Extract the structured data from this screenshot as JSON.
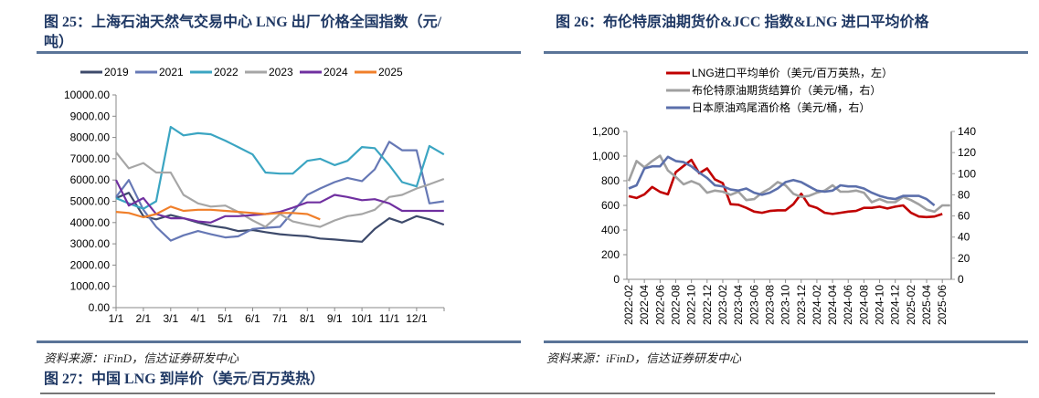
{
  "fig25": {
    "title": "图 25：上海石油天然气交易中心 LNG 出厂价格全国指数（元/吨）",
    "title_line1": "图 25：上海石油天然气交易中心 LNG 出厂价格全国指数（元/",
    "title_line2": "吨）",
    "source": "资料来源：iFinD，信达证券研发中心"
  },
  "fig26": {
    "title": "图 26：布伦特原油期货价&JCC 指数&LNG 进口平均价格",
    "source": "资料来源：iFinD，信达证券研发中心"
  },
  "fig27": {
    "title": "图 27：中国 LNG 到岸价（美元/百万英热）"
  },
  "chart_data": [
    {
      "type": "line",
      "ylim": [
        0,
        10000
      ],
      "y_ticks": [
        "0.00",
        "1000.00",
        "2000.00",
        "3000.00",
        "4000.00",
        "5000.00",
        "6000.00",
        "7000.00",
        "8000.00",
        "9000.00",
        "10000.00"
      ],
      "x_ticks": [
        "1/1",
        "2/1",
        "3/1",
        "4/1",
        "5/1",
        "6/1",
        "7/1",
        "8/1",
        "9/1",
        "10/1",
        "11/1",
        "12/1"
      ],
      "legend_placement": "top",
      "grid": false,
      "x": [
        "1/1",
        "1/15",
        "2/1",
        "2/15",
        "3/1",
        "3/15",
        "4/1",
        "4/15",
        "5/1",
        "5/15",
        "6/1",
        "6/15",
        "7/1",
        "7/15",
        "8/1",
        "8/15",
        "9/1",
        "9/15",
        "10/1",
        "10/15",
        "11/1",
        "11/15",
        "12/1",
        "12/15",
        "12/31"
      ],
      "series": [
        {
          "name": "2019",
          "color": "#3d4a6b",
          "values": [
            5150,
            5400,
            4300,
            4150,
            4350,
            4200,
            4000,
            3850,
            3750,
            3600,
            3650,
            3550,
            3450,
            3400,
            3350,
            3250,
            3200,
            3150,
            3100,
            3700,
            4200,
            4000,
            4300,
            4150,
            3900
          ]
        },
        {
          "name": "2021",
          "color": "#6678b5",
          "values": [
            5200,
            6000,
            4600,
            3800,
            3150,
            3400,
            3600,
            3450,
            3300,
            3350,
            3700,
            3750,
            3800,
            4500,
            5300,
            5600,
            5900,
            6100,
            5950,
            6500,
            7800,
            7400,
            7400,
            4900,
            5000
          ]
        },
        {
          "name": "2022",
          "color": "#3ba5c2",
          "values": [
            5150,
            4900,
            4650,
            5000,
            8500,
            8100,
            8200,
            8150,
            7850,
            7550,
            7200,
            6350,
            6300,
            6300,
            6900,
            7000,
            6700,
            6900,
            7550,
            7500,
            6700,
            5900,
            5700,
            7600,
            7200
          ]
        },
        {
          "name": "2023",
          "color": "#a6a6a6",
          "values": [
            7300,
            6550,
            6800,
            6350,
            6350,
            5300,
            4900,
            4750,
            4800,
            4500,
            4100,
            3800,
            4400,
            4050,
            3900,
            3800,
            4100,
            4300,
            4400,
            4600,
            5200,
            5300,
            5600,
            5800,
            6050
          ]
        },
        {
          "name": "2024",
          "color": "#7030a0",
          "values": [
            6000,
            4800,
            5150,
            4400,
            4200,
            4200,
            4050,
            4000,
            4300,
            4300,
            4350,
            4400,
            4500,
            4700,
            4950,
            4950,
            5300,
            5200,
            5050,
            5100,
            4900,
            4550,
            4550,
            4550,
            4550
          ]
        },
        {
          "name": "2025",
          "color": "#f07f2a",
          "values": [
            4500,
            4450,
            4250,
            4400,
            4750,
            4550,
            4600,
            4600,
            4550,
            4500,
            4450,
            4400,
            4450,
            4450,
            4400,
            4150,
            null,
            null,
            null,
            null,
            null,
            null,
            null,
            null,
            null
          ]
        }
      ]
    },
    {
      "type": "line",
      "ylim_left": [
        0,
        1200
      ],
      "ylim_right": [
        0,
        140
      ],
      "y_ticks_left": [
        "0",
        "200",
        "400",
        "600",
        "800",
        "1,000",
        "1,200"
      ],
      "y_ticks_right": [
        "0",
        "20",
        "40",
        "60",
        "80",
        "100",
        "120",
        "140"
      ],
      "x_ticks": [
        "2022-02",
        "2022-04",
        "2022-06",
        "2022-08",
        "2022-10",
        "2022-12",
        "2023-02",
        "2023-04",
        "2023-06",
        "2023-08",
        "2023-10",
        "2023-12",
        "2024-02",
        "2024-04",
        "2024-06",
        "2024-08",
        "2024-10",
        "2024-12",
        "2025-02",
        "2025-04",
        "2025-06"
      ],
      "legend_placement": "top",
      "grid": false,
      "x": [
        "2022-02",
        "2022-03",
        "2022-04",
        "2022-05",
        "2022-06",
        "2022-07",
        "2022-08",
        "2022-09",
        "2022-10",
        "2022-11",
        "2022-12",
        "2023-01",
        "2023-02",
        "2023-03",
        "2023-04",
        "2023-05",
        "2023-06",
        "2023-07",
        "2023-08",
        "2023-09",
        "2023-10",
        "2023-11",
        "2023-12",
        "2024-01",
        "2024-02",
        "2024-03",
        "2024-04",
        "2024-05",
        "2024-06",
        "2024-07",
        "2024-08",
        "2024-09",
        "2024-10",
        "2024-11",
        "2024-12",
        "2025-01",
        "2025-02",
        "2025-03",
        "2025-04",
        "2025-05",
        "2025-06",
        "2025-07"
      ],
      "series": [
        {
          "name": "LNG进口平均单价（美元/百万英热，左）",
          "axis": "left",
          "color": "#c00000",
          "values": [
            675,
            660,
            690,
            750,
            710,
            690,
            870,
            920,
            970,
            860,
            900,
            810,
            780,
            610,
            605,
            580,
            550,
            540,
            555,
            560,
            560,
            610,
            695,
            600,
            580,
            540,
            530,
            540,
            550,
            555,
            580,
            580,
            590,
            575,
            590,
            600,
            540,
            510,
            505,
            510,
            530,
            null
          ]
        },
        {
          "name": "布伦特原油期货结算价（美元/桶，右）",
          "axis": "right",
          "color": "#a0a0a0",
          "values": [
            93,
            112,
            106,
            112,
            117,
            103,
            97,
            90,
            93,
            90,
            82,
            84,
            83,
            80,
            83,
            75,
            76,
            82,
            86,
            92,
            89,
            81,
            78,
            79,
            82,
            84,
            89,
            83,
            83,
            84,
            82,
            73,
            76,
            73,
            73,
            78,
            75,
            71,
            66,
            64,
            70,
            70
          ]
        },
        {
          "name": "日本原油鸡尾酒价格（美元/桶，右）",
          "axis": "right",
          "color": "#5b6fab",
          "values": [
            86,
            89,
            105,
            107,
            107,
            116,
            112,
            111,
            107,
            101,
            96,
            89,
            88,
            85,
            84,
            86,
            82,
            80,
            82,
            86,
            92,
            94,
            92,
            88,
            84,
            83,
            84,
            89,
            88,
            88,
            86,
            82,
            79,
            77,
            76,
            79,
            79,
            79,
            76,
            70,
            null,
            null
          ]
        }
      ]
    }
  ]
}
